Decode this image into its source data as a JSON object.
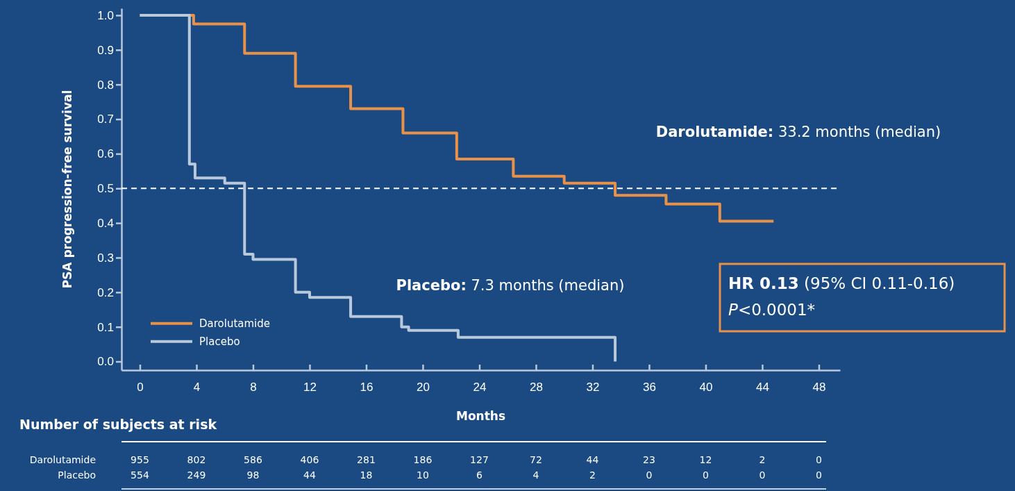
{
  "chart_data": {
    "type": "step",
    "xlabel": "Months",
    "ylabel": "PSA progression-free survival",
    "xlim": [
      -1.3,
      49.5
    ],
    "ylim": [
      -0.025,
      1.02
    ],
    "xticks": [
      0,
      4,
      8,
      12,
      16,
      20,
      24,
      28,
      32,
      36,
      40,
      44,
      48
    ],
    "yticks": [
      {
        "value": 0,
        "label": "0.0"
      },
      {
        "value": 0.1,
        "label": "0.1"
      },
      {
        "value": 0.2,
        "label": "0.2"
      },
      {
        "value": 0.3,
        "label": "0.3"
      },
      {
        "value": 0.4,
        "label": "0.4"
      },
      {
        "value": 0.5,
        "label": "0.5"
      },
      {
        "value": 0.6,
        "label": "0.6"
      },
      {
        "value": 0.7,
        "label": "0.7"
      },
      {
        "value": 0.8,
        "label": "0.8"
      },
      {
        "value": 0.9,
        "label": "0.9"
      },
      {
        "value": 1,
        "label": "1.0"
      }
    ],
    "series": [
      {
        "name": "Darolutamide",
        "color": "#e8914a",
        "x": [
          0,
          3.8,
          7.4,
          11,
          14.9,
          18.6,
          22.4,
          26.4,
          30,
          33.6,
          37.2,
          41,
          44.8
        ],
        "values": [
          1.0,
          0.975,
          0.89,
          0.795,
          0.73,
          0.66,
          0.585,
          0.535,
          0.515,
          0.48,
          0.455,
          0.405,
          0.405
        ]
      },
      {
        "name": "Placebo",
        "color": "#b9c9dc",
        "x": [
          0,
          3.5,
          3.9,
          6.0,
          7.4,
          8.0,
          11,
          12,
          14.9,
          18.5,
          19,
          22.5,
          33.6
        ],
        "values": [
          1.0,
          0.57,
          0.53,
          0.515,
          0.31,
          0.295,
          0.2,
          0.185,
          0.13,
          0.1,
          0.09,
          0.07,
          0.0
        ]
      }
    ],
    "ref_lines": [
      {
        "axis": "y",
        "value": 0.5,
        "color": "#ffffff",
        "line_style": "dashed"
      }
    ],
    "legend": "bottom left",
    "line_style": "solid",
    "marker": "none",
    "annotations": [
      "Darolutamide: 33.2 months (median)",
      "Placebo: 7.3 months (median)",
      "HR 0.13 (95% CI 0.11-0.16)",
      "P<0.0001*",
      "Number of subjects at risk",
      "Darolutamide 955 802 586 406 281 186 127 72 44 23 12 2 0",
      "Placebo 554 249 98 44 18 10 6 4 2 0 0 0 0"
    ]
  }
}
